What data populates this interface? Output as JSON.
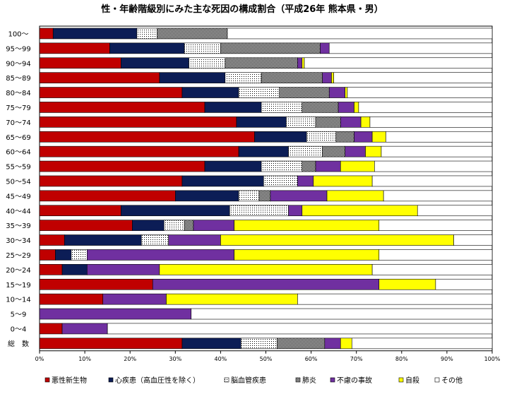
{
  "chart_data": {
    "type": "bar",
    "orientation": "horizontal",
    "stacked": true,
    "title": "性・年齢階級別にみた主な死因の構成割合（平成26年 熊本県・男）",
    "categories": [
      "100～",
      "95～99",
      "90～94",
      "85～89",
      "80～84",
      "75～79",
      "70～74",
      "65～69",
      "60～64",
      "55～59",
      "50～54",
      "45～49",
      "40～44",
      "35～39",
      "30～34",
      "25～29",
      "20～24",
      "15～19",
      "10～14",
      "5～9",
      "0～4",
      "総　数"
    ],
    "x_ticks": [
      "0%",
      "10%",
      "20%",
      "30%",
      "40%",
      "50%",
      "60%",
      "70%",
      "80%",
      "90%",
      "100%"
    ],
    "xlim": [
      0,
      100
    ],
    "legend_position": "bottom",
    "series": [
      {
        "name": "悪性新生物",
        "color": "#c00000",
        "pattern": "solid",
        "values": [
          3,
          15.5,
          18,
          26.5,
          31.5,
          36.5,
          43.5,
          47.5,
          44,
          36.5,
          31.5,
          30,
          18,
          20.5,
          5.5,
          3.5,
          5,
          25,
          14,
          0,
          5,
          31.5
        ]
      },
      {
        "name": "心疾患（高血圧性を除く）",
        "color": "#0c1d56",
        "pattern": "solid",
        "values": [
          18.5,
          16.5,
          15,
          14.5,
          12.5,
          12.5,
          11,
          11.5,
          11,
          12.5,
          18,
          14,
          24,
          7,
          17,
          3.5,
          5.5,
          0,
          0,
          0,
          0,
          13
        ]
      },
      {
        "name": "脳血管疾患",
        "color": "#ffffff",
        "pattern": "dots",
        "values": [
          4.5,
          8,
          8,
          8,
          9,
          9,
          6.5,
          6.5,
          7.5,
          9,
          7.5,
          4.5,
          13,
          4.5,
          6,
          3.5,
          0,
          0,
          0,
          0,
          0,
          8
        ]
      },
      {
        "name": "肺炎",
        "color": "#ffffff",
        "pattern": "checker",
        "values": [
          15.5,
          22,
          16,
          13.5,
          11,
          8,
          5.5,
          4,
          5,
          3,
          0,
          2.5,
          0,
          2,
          0,
          0,
          0,
          0,
          0,
          0,
          0,
          10.5
        ]
      },
      {
        "name": "不慮の事故",
        "color": "#7030a0",
        "pattern": "solid",
        "values": [
          0,
          2,
          1,
          2,
          3.5,
          3.5,
          4.5,
          4,
          4.5,
          5.5,
          3.5,
          12.5,
          3,
          9,
          11.5,
          32.5,
          16,
          50,
          14,
          33.5,
          10,
          3.5
        ]
      },
      {
        "name": "自殺",
        "color": "#ffff00",
        "pattern": "solid",
        "values": [
          0,
          0,
          0.5,
          0.5,
          0.5,
          1,
          2,
          3,
          3.5,
          7.5,
          13,
          12.5,
          25.5,
          32,
          51.5,
          32,
          47,
          12.5,
          29,
          0,
          0,
          2.5
        ]
      },
      {
        "name": "その他",
        "color": "#ffffff",
        "pattern": "solid",
        "values": [
          58.5,
          36,
          41.5,
          35,
          32,
          29.5,
          27,
          23.5,
          24.5,
          26,
          26.5,
          24,
          16.5,
          25,
          8.5,
          25,
          26.5,
          12.5,
          43,
          66.5,
          85,
          31
        ]
      }
    ]
  }
}
